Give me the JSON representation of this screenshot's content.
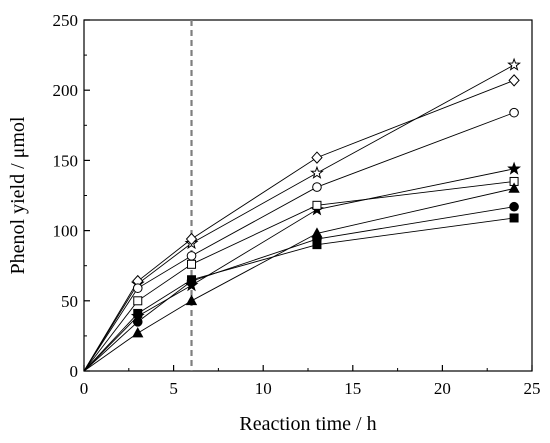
{
  "chart_data": {
    "type": "line",
    "xlabel": "Reaction time / h",
    "ylabel": "Phenol yield / μmol",
    "xlim": [
      0,
      25
    ],
    "ylim": [
      0,
      250
    ],
    "x_ticks": [
      0,
      5,
      10,
      15,
      20,
      25
    ],
    "y_ticks": [
      0,
      50,
      100,
      150,
      200,
      250
    ],
    "grid": false,
    "legend": "none",
    "vline": {
      "x": 6,
      "style": "dashed",
      "color": "#7f7f7f"
    },
    "series": [
      {
        "marker": "star-open",
        "x": [
          0,
          3,
          6,
          13,
          24
        ],
        "y": [
          0,
          62,
          91,
          141,
          218
        ]
      },
      {
        "marker": "diamond-open",
        "x": [
          0,
          3,
          6,
          13,
          24
        ],
        "y": [
          0,
          64,
          94,
          152,
          207
        ]
      },
      {
        "marker": "circle-open",
        "x": [
          0,
          3,
          6,
          13,
          24
        ],
        "y": [
          0,
          59,
          82,
          131,
          184
        ]
      },
      {
        "marker": "star-filled",
        "x": [
          0,
          3,
          6,
          13,
          24
        ],
        "y": [
          0,
          39,
          61,
          115,
          144
        ]
      },
      {
        "marker": "square-open",
        "x": [
          0,
          3,
          6,
          13,
          24
        ],
        "y": [
          0,
          50,
          76,
          118,
          135
        ]
      },
      {
        "marker": "triangle-filled",
        "x": [
          0,
          3,
          6,
          13,
          24
        ],
        "y": [
          0,
          27,
          50,
          98,
          130
        ]
      },
      {
        "marker": "circle-filled",
        "x": [
          0,
          3,
          6,
          13,
          24
        ],
        "y": [
          0,
          35,
          64,
          94,
          117
        ]
      },
      {
        "marker": "square-filled",
        "x": [
          0,
          3,
          6,
          13,
          24
        ],
        "y": [
          0,
          41,
          65,
          90,
          109
        ]
      }
    ]
  }
}
